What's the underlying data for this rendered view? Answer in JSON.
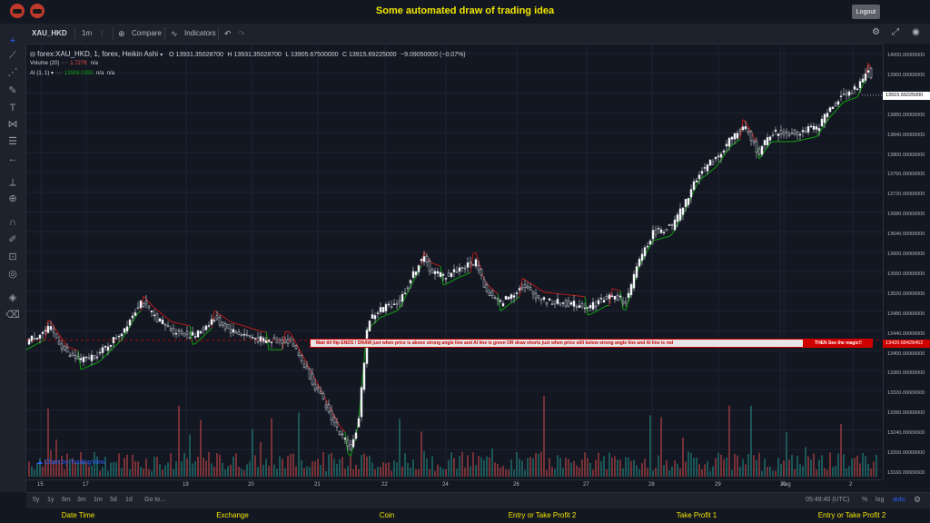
{
  "app": {
    "title": "Some automated draw of trading idea",
    "logout_label": "Logout"
  },
  "toolbar": {
    "symbol": "XAU_HKD",
    "interval": "1m",
    "compare_label": "Compare",
    "indicators_label": "Indicators"
  },
  "legend": {
    "title": "forex:XAU_HKD, 1, forex, Heikin Ashi",
    "open": "O 13931.35028700",
    "high": "H 13931.35028700",
    "low": "L 13905.67500000",
    "close": "C 13915.69225000",
    "change": "−9.09050000 (−0.07%)",
    "volume_label": "Volume (20)",
    "volume_value": "1.727K",
    "volume_na": "n/a",
    "ai_label": "AI (1, 1)",
    "ai_value": "13908.0395",
    "ai_na1": "n/a",
    "ai_na2": "n/a"
  },
  "price_axis": {
    "labels": [
      "14000.00000000",
      "13960.00000000",
      "13920.00000000",
      "13880.00000000",
      "13840.00000000",
      "13800.00000000",
      "13760.00000000",
      "13720.00000000",
      "13680.00000000",
      "13640.00000000",
      "13600.00000000",
      "13560.00000000",
      "13520.00000000",
      "13480.00000000",
      "13440.00000000",
      "13400.00000000",
      "13360.00000000",
      "13320.00000000",
      "13280.00000000",
      "13240.00000000",
      "13200.00000000",
      "13160.00000000"
    ],
    "current_price": "13915.69225000",
    "marker_price": "13420.68428452"
  },
  "date_axis": {
    "labels": [
      "15",
      "17",
      "19",
      "20",
      "21",
      "22",
      "24",
      "26",
      "27",
      "28",
      "29",
      "30",
      "Aug",
      "2"
    ]
  },
  "banner": {
    "text": "Wait till flip ENDS  !   DRAW just when  price is above strong angle line and AI line is green          OR          draw shorts just when price still below strong angle line and AI line is red",
    "cta": "THEN See the magic!!"
  },
  "watermark": "Chart by TradingView",
  "bottom_bar": {
    "ranges": [
      "5y",
      "1y",
      "6m",
      "3m",
      "1m",
      "5d",
      "1d"
    ],
    "goto_label": "Go to...",
    "time": "05:49:40 (UTC)",
    "percent": "%",
    "log": "log",
    "auto": "auto"
  },
  "footer": {
    "items": [
      "Date Time",
      "Exchange",
      "Coin",
      "Entry or Take Profit 2",
      "Take Profit 1",
      "Entry or Take Profit 2"
    ]
  },
  "colors": {
    "up": "#26a69a",
    "down": "#ef5350",
    "ai_green": "#11a011",
    "ai_red": "#b71c1c",
    "accent": "#f2e600",
    "axis_bg": "#131722"
  },
  "chart_data": {
    "type": "line",
    "title": "forex:XAU_HKD, 1, forex, Heikin Ashi",
    "x": [
      "15",
      "17",
      "19",
      "20",
      "21",
      "22",
      "24",
      "26",
      "27",
      "28",
      "29",
      "30",
      "Aug",
      "2"
    ],
    "series": [
      {
        "name": "forex:XAU_HKD",
        "values": [
          13430,
          13470,
          13440,
          13420,
          13210,
          13500,
          13560,
          13500,
          13480,
          13620,
          13800,
          13840,
          13900,
          13915
        ]
      }
    ],
    "ylim": [
      13140,
      14020
    ]
  }
}
